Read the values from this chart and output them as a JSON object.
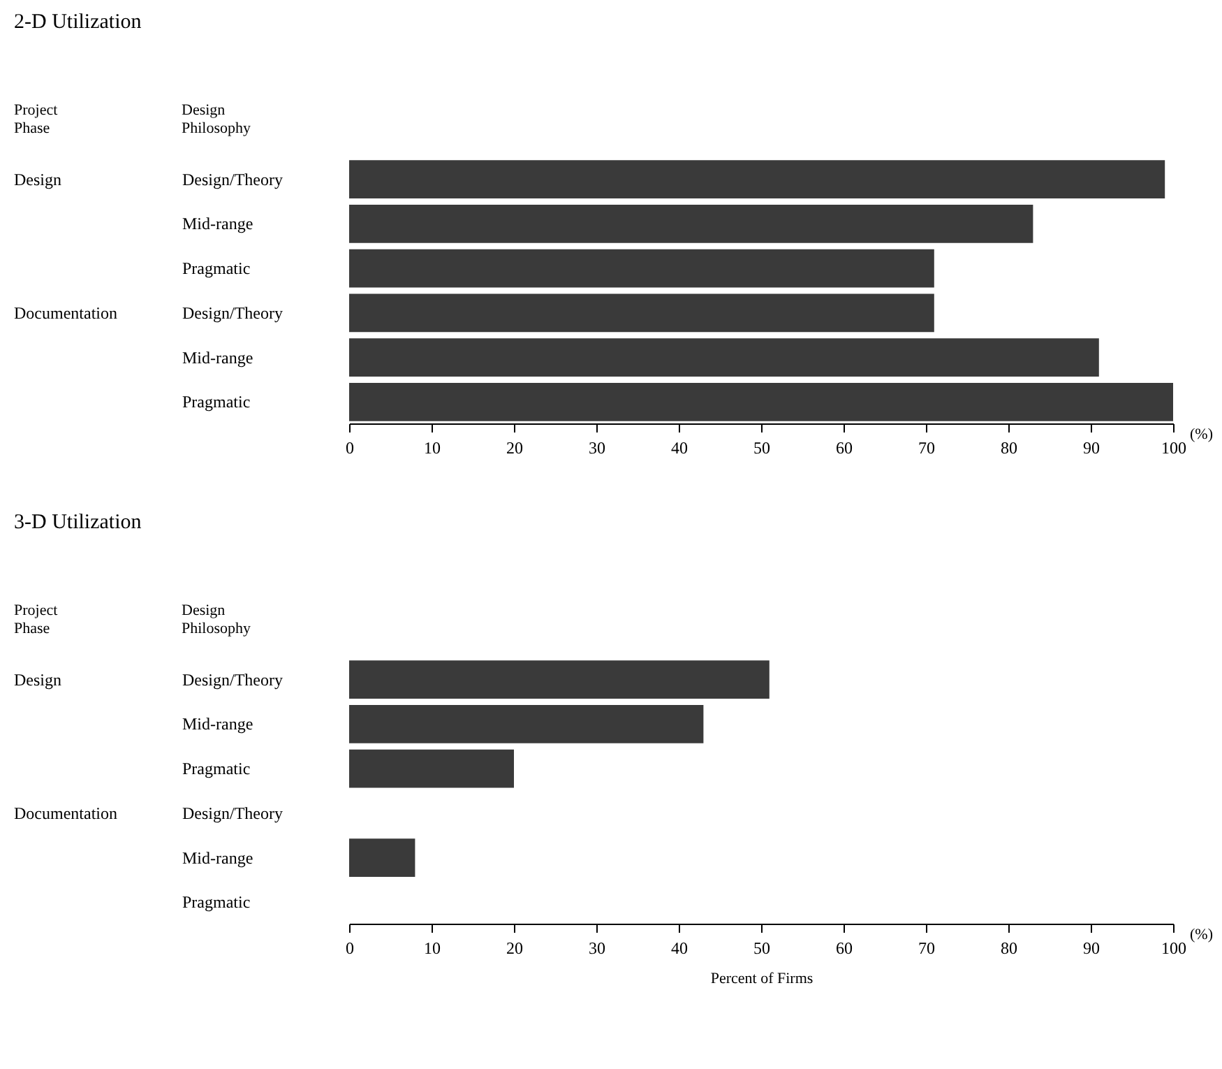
{
  "chart_data": [
    {
      "type": "bar",
      "orientation": "horizontal",
      "title": "2-D Utilization",
      "ylabel": "Design Philosophy",
      "categories": [
        "Design/Theory",
        "Mid-range",
        "Pragmatic",
        null,
        "Design/Theory",
        "Mid-range",
        "Pragmatic"
      ],
      "values": [
        99,
        83,
        71,
        null,
        71,
        91,
        100
      ],
      "color": "#3a3a3a",
      "xlim": [
        0,
        100
      ],
      "xticks": [
        0,
        10,
        20,
        30,
        40,
        50,
        60,
        70,
        80,
        90,
        100
      ],
      "annotations": [
        "Project Phase",
        "Design",
        "Documentation",
        "(%)"
      ]
    },
    {
      "type": "bar",
      "orientation": "horizontal",
      "title": "3-D Utilization",
      "ylabel": "Design Philosophy",
      "xlabel": "Percent of Firms",
      "categories": [
        "Design/Theory",
        "Mid-range",
        "Pragmatic",
        null,
        "Design/Theory",
        "Mid-range",
        "Pragmatic"
      ],
      "values": [
        51,
        43,
        20,
        null,
        0,
        8,
        0
      ],
      "color": "#3a3a3a",
      "xlim": [
        0,
        100
      ],
      "xticks": [
        0,
        10,
        20,
        30,
        40,
        50,
        60,
        70,
        80,
        90,
        100
      ],
      "annotations": [
        "Project Phase",
        "Design",
        "Documentation",
        "(%)"
      ]
    }
  ]
}
